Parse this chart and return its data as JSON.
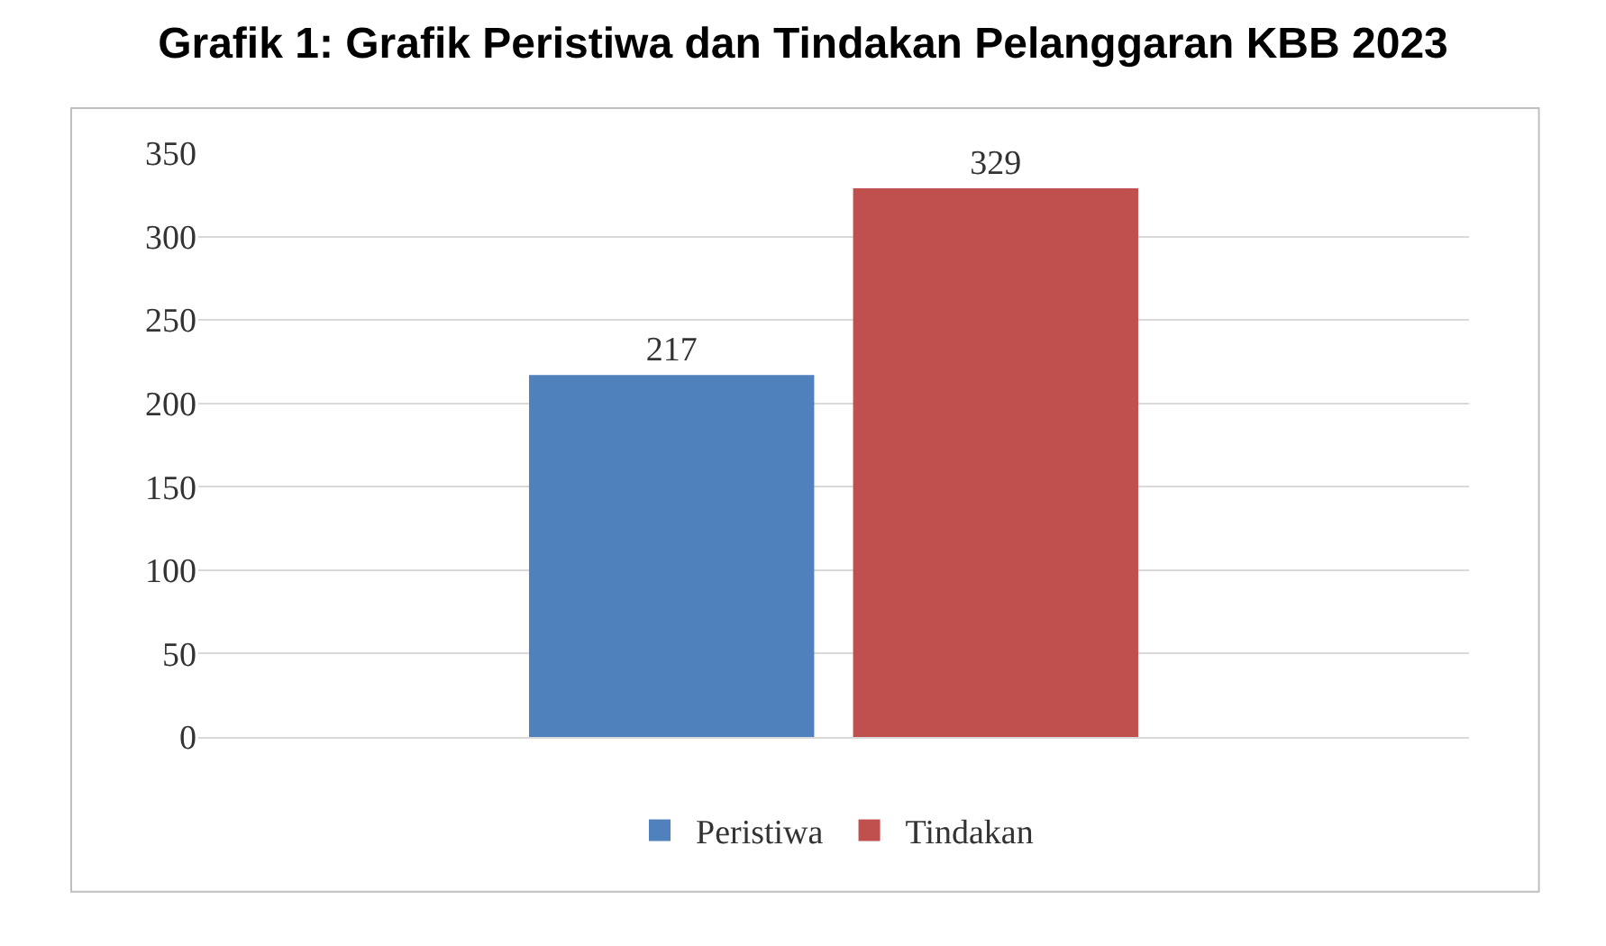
{
  "chart_data": {
    "type": "bar",
    "title": "Grafik 1: Grafik Peristiwa dan Tindakan Pelanggaran KBB 2023",
    "categories": [
      null
    ],
    "series": [
      {
        "name": "Peristiwa",
        "color": "#4f81bd",
        "values": [
          217
        ]
      },
      {
        "name": "Tindakan",
        "color": "#c0504d",
        "values": [
          329
        ]
      }
    ],
    "ylim": [
      0,
      350
    ],
    "yticks": [
      0,
      50,
      100,
      150,
      200,
      250,
      300,
      350
    ],
    "grid": "y",
    "legend": "bottom",
    "data_labels": true
  }
}
